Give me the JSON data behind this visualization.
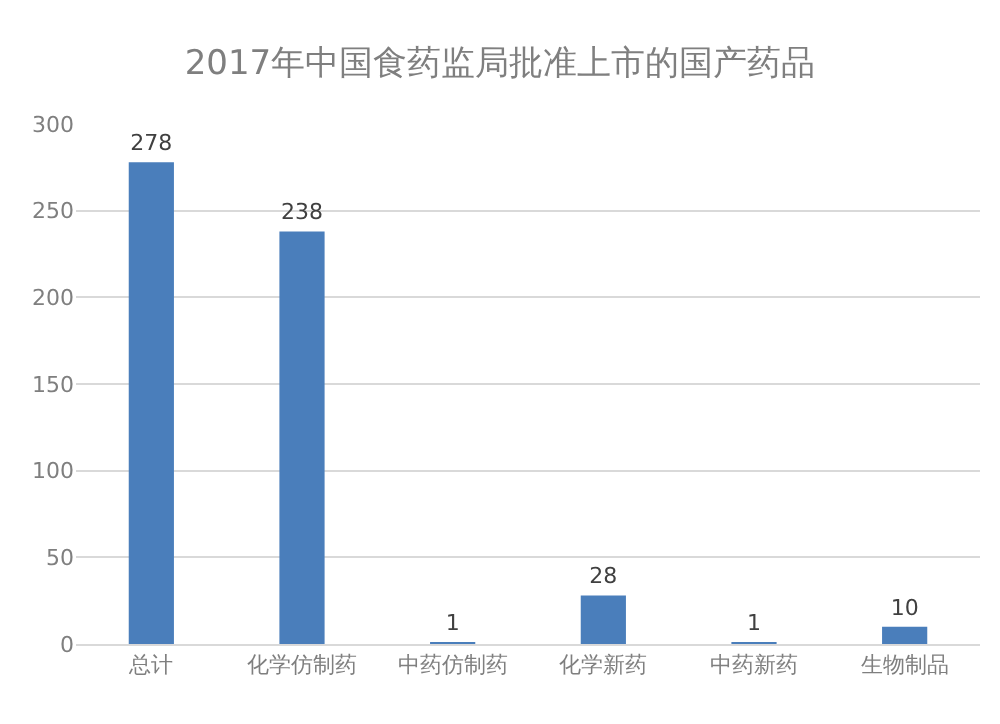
{
  "chart_data": {
    "type": "bar",
    "title": "2017年中国食药监局批准上市的国产药品",
    "categories": [
      "总计",
      "化学仿制药",
      "中药仿制药",
      "化学新药",
      "中药新药",
      "生物制品"
    ],
    "values": [
      278,
      238,
      1,
      28,
      1,
      10
    ],
    "color": "#4a7ebb",
    "ylim": [
      0,
      300
    ],
    "yticks": [
      0,
      50,
      100,
      150,
      200,
      250,
      300
    ],
    "grid": "y",
    "data_labels": true,
    "legend": false
  }
}
